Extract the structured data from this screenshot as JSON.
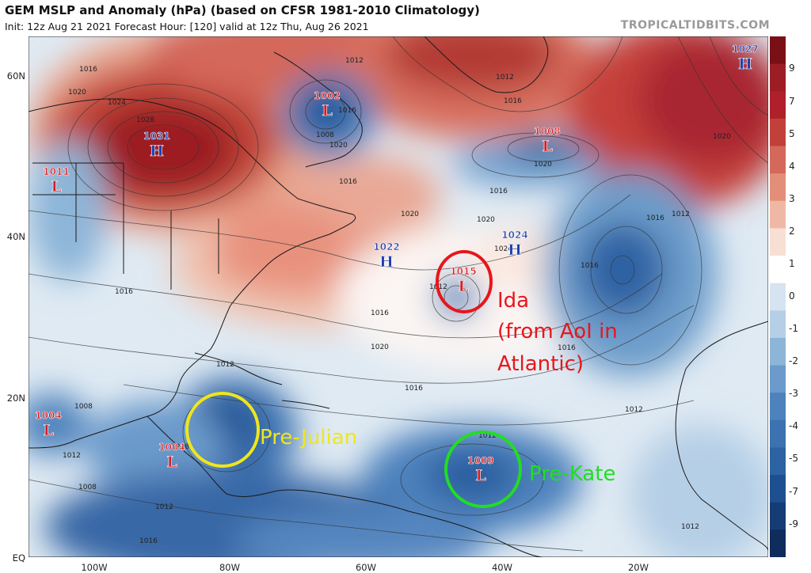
{
  "header": {
    "title": "GEM MSLP and Anomaly (hPa) (based on CFSR 1981-2010 Climatology)",
    "subtitle": "Init: 12z Aug 21 2021   Forecast Hour: [120]   valid at 12z Thu, Aug 26 2021",
    "watermark": "TROPICALTIDBITS.COM"
  },
  "axes": {
    "lat_labels": [
      "60N",
      "40N",
      "20N",
      "EQ"
    ],
    "lon_labels": [
      "100W",
      "80W",
      "60W",
      "40W",
      "20W"
    ]
  },
  "colorbar": {
    "ticks": [
      "9",
      "7",
      "5",
      "4",
      "3",
      "2",
      "1",
      "0",
      "-1",
      "-2",
      "-3",
      "-4",
      "-5",
      "-7",
      "-9"
    ],
    "positive_color": "#b0202a",
    "zero_color": "#ffffff",
    "negative_color": "#1c4f96"
  },
  "systems": [
    {
      "id": "h1031",
      "type": "H",
      "value": "1031"
    },
    {
      "id": "l1002",
      "type": "L",
      "value": "1002"
    },
    {
      "id": "l1008",
      "type": "L",
      "value": "1008"
    },
    {
      "id": "h1027",
      "type": "H",
      "value": "1027"
    },
    {
      "id": "l1011",
      "type": "L",
      "value": "1011"
    },
    {
      "id": "h1022",
      "type": "H",
      "value": "1022"
    },
    {
      "id": "h1024",
      "type": "H",
      "value": "1024"
    },
    {
      "id": "l1015",
      "type": "L",
      "value": "1015"
    },
    {
      "id": "l1004a",
      "type": "L",
      "value": "1004"
    },
    {
      "id": "l1004b",
      "type": "L",
      "value": "1004"
    },
    {
      "id": "l1009",
      "type": "L",
      "value": "1009"
    }
  ],
  "isobar_labels": [
    "1012",
    "1016",
    "1020",
    "1024",
    "1028",
    "1008",
    "1016",
    "1012",
    "1016",
    "1020",
    "1016",
    "1020",
    "1020",
    "1016",
    "1012",
    "1020",
    "1016",
    "1020",
    "1024",
    "1012",
    "1016",
    "1020",
    "1016",
    "1016",
    "1016",
    "1012",
    "1016",
    "1012",
    "1008",
    "1008",
    "1012",
    "1012",
    "1008",
    "1012",
    "1016",
    "1008",
    "1012"
  ],
  "annotations": {
    "ida": {
      "line1": "Ida",
      "line2": "(from AoI in",
      "line3": "Atlantic)",
      "color": "#e8161b"
    },
    "pre_julian": {
      "text": "Pre-Julian",
      "color": "#f0e61a"
    },
    "pre_kate": {
      "text": "Pre-Kate",
      "color": "#22dd22"
    }
  }
}
